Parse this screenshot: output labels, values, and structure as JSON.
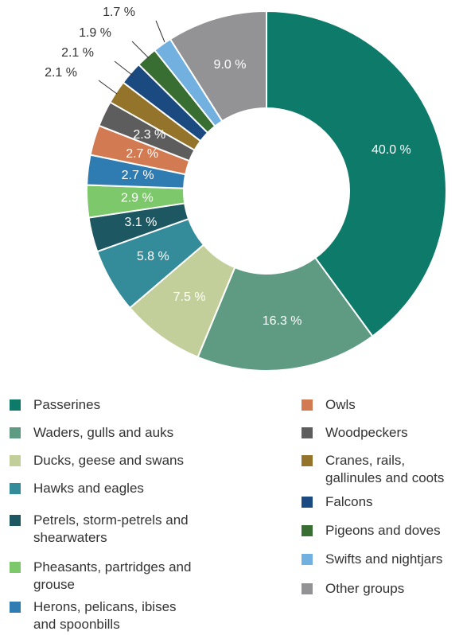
{
  "chart_data": {
    "type": "pie",
    "categories": [
      "Passerines",
      "Waders, gulls and auks",
      "Ducks, geese and swans",
      "Hawks and eagles",
      "Petrels, storm-petrels and shearwaters",
      "Pheasants, partridges and grouse",
      "Herons, pelicans, ibises and spoonbills",
      "Owls",
      "Woodpeckers",
      "Cranes, rails, gallinules and coots",
      "Falcons",
      "Pigeons and doves",
      "Swifts and nightjars",
      "Other groups"
    ],
    "values": [
      40.0,
      16.3,
      7.5,
      5.8,
      3.1,
      2.9,
      2.7,
      2.7,
      2.3,
      2.1,
      2.1,
      1.9,
      1.7,
      9.0
    ],
    "labels": [
      "40.0 %",
      "16.3 %",
      "7.5 %",
      "5.8 %",
      "3.1 %",
      "2.9 %",
      "2.7 %",
      "2.7 %",
      "2.3 %",
      "2.1 %",
      "2.1 %",
      "1.9 %",
      "1.7 %",
      "9.0 %"
    ],
    "colors": [
      "#0e7a6a",
      "#5e9b82",
      "#c3cf9a",
      "#348b9a",
      "#1d5762",
      "#7dc86a",
      "#2f7cb3",
      "#d27a52",
      "#5d5d5d",
      "#94742a",
      "#1a4a80",
      "#386e32",
      "#72b0e0",
      "#939396"
    ],
    "legend_placement": "bottom",
    "donut": true
  }
}
